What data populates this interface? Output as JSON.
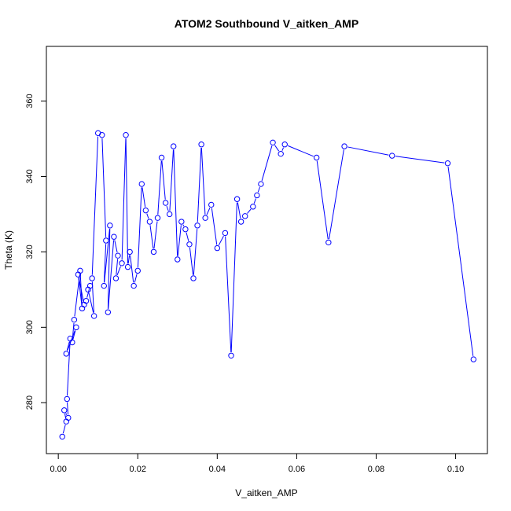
{
  "chart_data": {
    "type": "line",
    "title": "ATOM2 Southbound V_aitken_AMP",
    "xlabel": "V_aitken_AMP",
    "ylabel": "Theta (K)",
    "xlim": [
      -0.003,
      0.108
    ],
    "ylim": [
      266.5,
      374.5
    ],
    "xticks": [
      0.0,
      0.02,
      0.04,
      0.06,
      0.08,
      0.1
    ],
    "xtick_labels": [
      "0.00",
      "0.02",
      "0.04",
      "0.06",
      "0.08",
      "0.10"
    ],
    "yticks": [
      280,
      300,
      320,
      340,
      360
    ],
    "ytick_labels": [
      "280",
      "300",
      "320",
      "340",
      "360"
    ],
    "grid": false,
    "legend": "none",
    "series": [
      {
        "color": "#0000ff",
        "marker": "open-circle",
        "line": true,
        "x": [
          0.001,
          0.002,
          0.0015,
          0.0025,
          0.0022,
          0.003,
          0.002,
          0.0045,
          0.0035,
          0.004,
          0.0055,
          0.006,
          0.005,
          0.0065,
          0.007,
          0.008,
          0.0075,
          0.009,
          0.0085,
          0.01,
          0.011,
          0.012,
          0.0115,
          0.013,
          0.0125,
          0.014,
          0.015,
          0.0145,
          0.016,
          0.017,
          0.0175,
          0.018,
          0.019,
          0.02,
          0.021,
          0.022,
          0.023,
          0.024,
          0.025,
          0.026,
          0.027,
          0.028,
          0.029,
          0.03,
          0.031,
          0.032,
          0.033,
          0.034,
          0.035,
          0.036,
          0.037,
          0.0385,
          0.04,
          0.042,
          0.0435,
          0.045,
          0.046,
          0.047,
          0.049,
          0.05,
          0.051,
          0.054,
          0.056,
          0.057,
          0.065,
          0.068,
          0.072,
          0.084,
          0.098,
          0.1045
        ],
        "y": [
          271,
          275,
          278,
          276,
          281,
          297,
          293,
          300,
          296,
          302,
          315,
          305,
          314,
          306,
          307,
          311,
          310,
          303,
          313,
          351.5,
          351,
          323,
          311,
          327,
          304,
          324,
          319,
          313,
          317,
          351,
          316,
          320,
          311,
          315,
          338,
          331,
          328,
          320,
          329,
          345,
          333,
          330,
          348,
          318,
          328,
          326,
          322,
          313,
          327,
          348.5,
          329,
          332.5,
          321,
          325,
          292.5,
          334,
          328,
          329.5,
          332,
          335,
          338,
          349,
          346,
          348.5,
          345,
          322.5,
          348,
          345.5,
          343.5,
          291.5
        ]
      }
    ]
  }
}
